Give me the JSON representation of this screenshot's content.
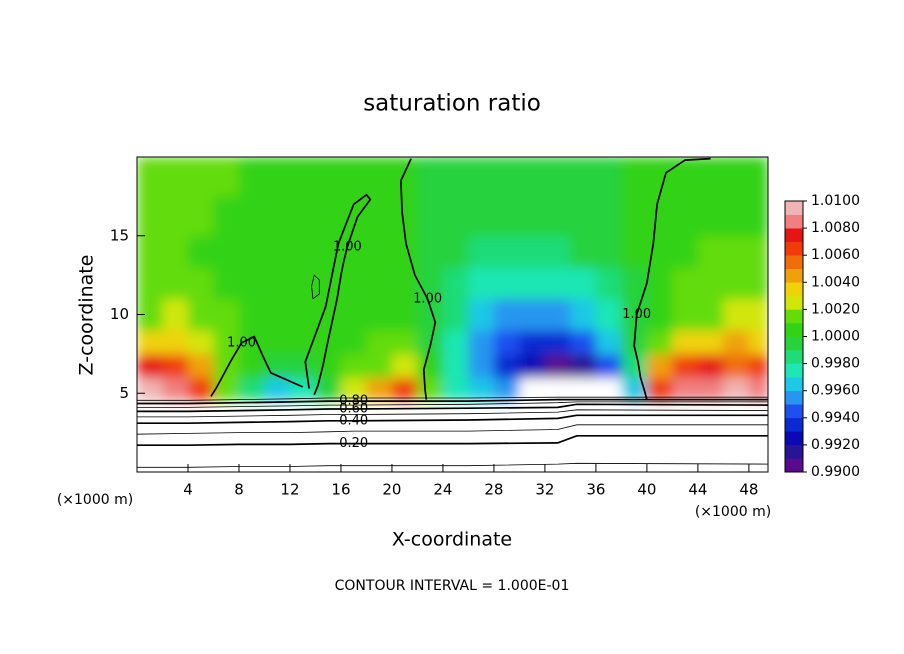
{
  "chart_data": {
    "type": "contour",
    "title": "saturation ratio",
    "xlabel": "X-coordinate",
    "ylabel": "Z-coordinate",
    "xunit_left": "(×1000 m)",
    "xunit_right": "(×1000 m)",
    "note": "CONTOUR INTERVAL = 1.000E-01",
    "xlim": [
      0,
      49.5
    ],
    "ylim": [
      0,
      20
    ],
    "xticks": [
      4,
      8,
      12,
      16,
      20,
      24,
      28,
      32,
      36,
      40,
      44,
      48
    ],
    "yticks": [
      5,
      10,
      15
    ],
    "clim": [
      0.99,
      1.01
    ],
    "colors": [
      "#5a0a8c",
      "#2a1496",
      "#0a0ab4",
      "#0a2ad2",
      "#1e50f0",
      "#2896f0",
      "#1ec8e6",
      "#1ee6b4",
      "#1edc78",
      "#28d23c",
      "#32d214",
      "#64dc0a",
      "#d2e60a",
      "#f0d20a",
      "#f0a00a",
      "#f06e0a",
      "#f03c0a",
      "#e61414",
      "#f08080",
      "#f0b4b4"
    ],
    "cticks": [
      {
        "value": 1.01,
        "label": "1.0100"
      },
      {
        "value": 1.008,
        "label": "1.0080"
      },
      {
        "value": 1.006,
        "label": "1.0060"
      },
      {
        "value": 1.004,
        "label": "1.0040"
      },
      {
        "value": 1.002,
        "label": "1.0020"
      },
      {
        "value": 1.0,
        "label": "1.0000"
      },
      {
        "value": 0.998,
        "label": "0.9980"
      },
      {
        "value": 0.996,
        "label": "0.9960"
      },
      {
        "value": 0.994,
        "label": "0.9940"
      },
      {
        "value": 0.992,
        "label": "0.9920"
      },
      {
        "value": 0.99,
        "label": "0.9900"
      }
    ],
    "field": {
      "x_edges": [
        0,
        2,
        4,
        6,
        8,
        10,
        12,
        14,
        16,
        18,
        20,
        22,
        24,
        26,
        28,
        30,
        32,
        34,
        36,
        38,
        40,
        42,
        44,
        46,
        48,
        49.5
      ],
      "z_edges": [
        4.6,
        6,
        7.5,
        9,
        11,
        13,
        15,
        17.5,
        20
      ],
      "values": [
        [
          1.009,
          1.008,
          1.006,
          1.001,
          0.998,
          0.996,
          0.997,
          0.999,
          1.002,
          1.004,
          1.006,
          1.001,
          0.997,
          0.996,
          0.995,
          0.985,
          0.985,
          0.985,
          0.985,
          0.996,
          1.006,
          1.008,
          1.008,
          1.009,
          1.008
        ],
        [
          1.007,
          1.006,
          1.004,
          1.001,
          1.0,
          0.999,
          0.999,
          1.0,
          1.001,
          1.001,
          1.002,
          1.0,
          0.997,
          0.995,
          0.993,
          0.992,
          0.99,
          0.991,
          0.994,
          0.998,
          1.004,
          1.006,
          1.007,
          1.005,
          1.006
        ],
        [
          1.003,
          1.003,
          1.002,
          1.001,
          1.0,
          1.0,
          1.0,
          1.0,
          1.0,
          1.001,
          1.001,
          0.999,
          0.997,
          0.995,
          0.994,
          0.993,
          0.993,
          0.994,
          0.996,
          0.999,
          1.001,
          1.003,
          1.003,
          1.004,
          1.003
        ],
        [
          1.001,
          1.002,
          1.001,
          1.001,
          1.0,
          1.0,
          1.0,
          1.0,
          1.0,
          1.0,
          1.0,
          0.999,
          0.998,
          0.996,
          0.995,
          0.995,
          0.995,
          0.996,
          0.997,
          0.999,
          1.0,
          1.001,
          1.001,
          1.002,
          1.002
        ],
        [
          1.001,
          1.001,
          1.001,
          1.0,
          1.0,
          1.0,
          1.0,
          1.0,
          1.0,
          1.0,
          1.0,
          0.999,
          0.998,
          0.997,
          0.997,
          0.997,
          0.997,
          0.997,
          0.998,
          0.999,
          1.0,
          1.001,
          1.001,
          1.001,
          1.001
        ],
        [
          1.001,
          1.001,
          1.0,
          1.0,
          1.0,
          1.0,
          1.0,
          1.0,
          1.0,
          1.0,
          1.0,
          0.9995,
          0.999,
          0.998,
          0.998,
          0.998,
          0.998,
          0.999,
          0.999,
          1.0,
          1.0,
          1.0,
          1.001,
          1.001,
          1.001
        ],
        [
          1.001,
          1.001,
          1.001,
          1.0,
          1.0,
          1.0,
          1.0,
          1.0,
          1.0,
          1.0,
          1.0,
          0.9995,
          0.9995,
          0.999,
          0.999,
          0.999,
          0.999,
          0.9995,
          0.9995,
          1.0,
          1.0,
          1.0,
          1.0,
          1.0,
          1.0
        ],
        [
          1.001,
          1.001,
          1.001,
          1.001,
          1.0005,
          1.0,
          1.0,
          1.0,
          1.0,
          1.0,
          1.0,
          0.9995,
          0.9995,
          0.9995,
          0.9995,
          0.9995,
          0.9995,
          0.9995,
          0.9995,
          1.0,
          1.0,
          1.0005,
          1.0005,
          1.0005,
          1.0005
        ]
      ]
    },
    "contours": [
      {
        "label": "1.00",
        "x": [
          5.8,
          6.2,
          6.6,
          7,
          7.4,
          8.2,
          9.2,
          9.8,
          10.5,
          13
        ],
        "z": [
          4.8,
          5.3,
          5.9,
          6.5,
          7.1,
          8.2,
          8.6,
          7.5,
          6.3,
          5.4
        ]
      },
      {
        "label": "1.00",
        "x": [
          13.9,
          14.2,
          14.6,
          14.9,
          15.3,
          15.7,
          16,
          16.2,
          16.5,
          17.3,
          18.3,
          18,
          17,
          15.8,
          14.8,
          13.2,
          13.5
        ],
        "z": [
          4.9,
          5.5,
          6.8,
          8,
          9.5,
          11,
          12.5,
          13.3,
          14.3,
          16.2,
          17.3,
          17.6,
          17,
          14.5,
          10.5,
          7,
          5.3
        ]
      },
      {
        "x": [
          13.8,
          14.3,
          14.3,
          13.9,
          13.7,
          13.8
        ],
        "z": [
          11,
          11.3,
          12.2,
          12.5,
          11.8,
          11
        ]
      },
      {
        "label": "1.00",
        "x": [
          22.7,
          22.6,
          22.5,
          23,
          23.4,
          22.8,
          21.8,
          21.1,
          20.8,
          20.7,
          21.5
        ],
        "z": [
          4.6,
          5.2,
          6.5,
          8,
          9.5,
          11,
          12.5,
          14.5,
          16.5,
          18.5,
          19.9
        ]
      },
      {
        "label": "1.00",
        "x": [
          45,
          43,
          41.5,
          40.8,
          40.5,
          40,
          39.2,
          39,
          39.3,
          39.5,
          39.8,
          40
        ],
        "z": [
          19.9,
          19.8,
          19,
          17,
          14.5,
          12,
          10,
          8,
          7,
          6,
          5.2,
          4.6
        ]
      },
      {
        "x": [
          0,
          4,
          8,
          12,
          15,
          17,
          26,
          33,
          34.5,
          49.5
        ],
        "z": [
          0.3,
          0.3,
          0.35,
          0.35,
          0.4,
          0.4,
          0.4,
          0.5,
          0.55,
          0.5
        ]
      },
      {
        "label": "0.20",
        "x": [
          0,
          4,
          8,
          12,
          15,
          17,
          26,
          33,
          34.5,
          49.5
        ],
        "z": [
          1.7,
          1.7,
          1.75,
          1.75,
          1.8,
          1.8,
          1.8,
          1.85,
          2.3,
          2.3
        ]
      },
      {
        "x": [
          0,
          4,
          8,
          12,
          15,
          17,
          26,
          33,
          34.5,
          49.5
        ],
        "z": [
          2.4,
          2.45,
          2.5,
          2.5,
          2.55,
          2.6,
          2.6,
          2.7,
          3.0,
          3.0
        ]
      },
      {
        "label": "0.40",
        "x": [
          0,
          4,
          8,
          12,
          15,
          17,
          26,
          33,
          34.5,
          49.5
        ],
        "z": [
          3.1,
          3.1,
          3.15,
          3.2,
          3.25,
          3.25,
          3.3,
          3.4,
          3.6,
          3.6
        ]
      },
      {
        "x": [
          0,
          4,
          8,
          12,
          15,
          17,
          26,
          33,
          34.5,
          49.5
        ],
        "z": [
          3.5,
          3.5,
          3.55,
          3.6,
          3.65,
          3.65,
          3.7,
          3.8,
          3.95,
          3.9
        ]
      },
      {
        "label": "0.60",
        "x": [
          0,
          4,
          8,
          12,
          15,
          17,
          26,
          33,
          34.5,
          49.5
        ],
        "z": [
          3.85,
          3.85,
          3.9,
          3.95,
          4.0,
          4.0,
          4.05,
          4.1,
          4.3,
          4.25
        ]
      },
      {
        "x": [
          0,
          4,
          8,
          12,
          15,
          17,
          26,
          33,
          34.5,
          49.5
        ],
        "z": [
          4.1,
          4.1,
          4.15,
          4.2,
          4.25,
          4.25,
          4.3,
          4.4,
          4.45,
          4.45
        ]
      },
      {
        "label": "0.80",
        "x": [
          0,
          4,
          8,
          12,
          15,
          17,
          26,
          33,
          34.5,
          49.5
        ],
        "z": [
          4.35,
          4.35,
          4.4,
          4.45,
          4.5,
          4.5,
          4.5,
          4.6,
          4.6,
          4.6
        ]
      },
      {
        "x": [
          0,
          4,
          8,
          12,
          15,
          17,
          26,
          33,
          34.5,
          49.5
        ],
        "z": [
          4.55,
          4.55,
          4.6,
          4.65,
          4.7,
          4.7,
          4.7,
          4.75,
          4.75,
          4.75
        ]
      }
    ]
  }
}
